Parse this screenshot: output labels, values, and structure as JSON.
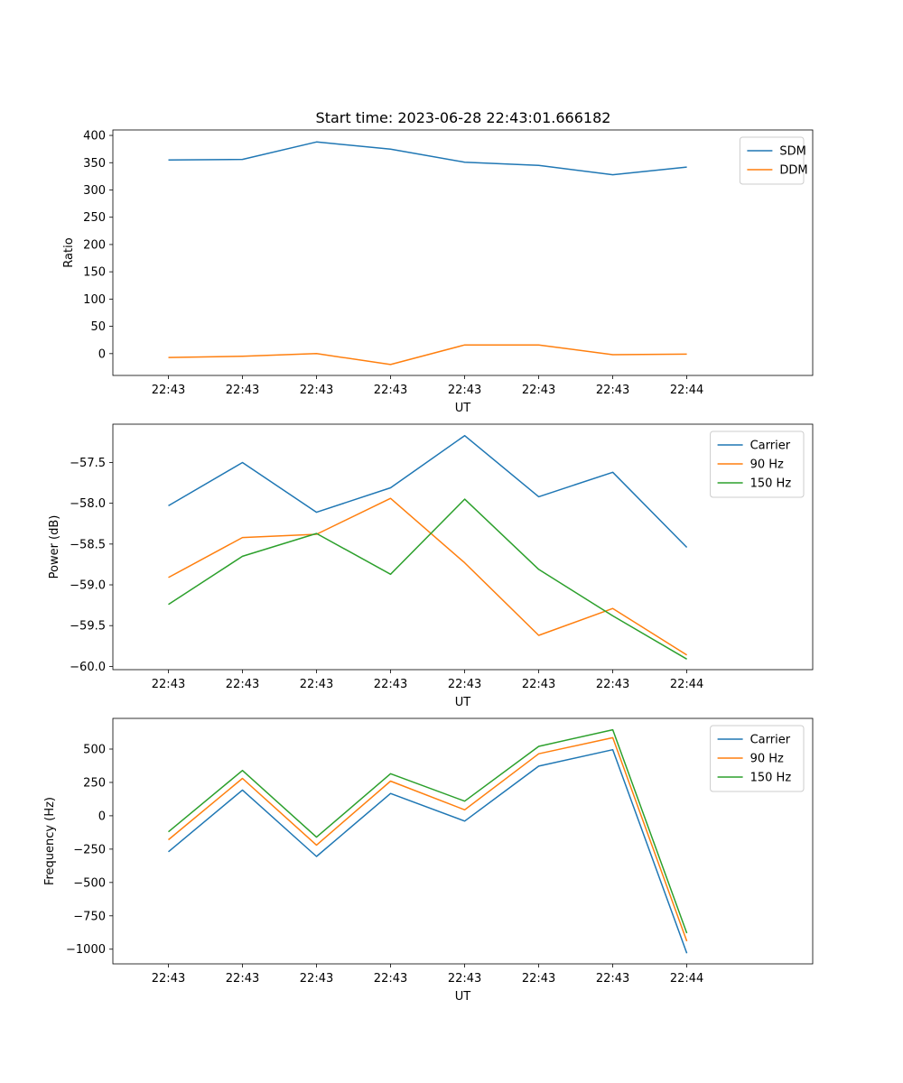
{
  "title": "Start time: 2023-06-28 22:43:01.666182",
  "chart_data": [
    {
      "type": "line",
      "xlabel": "UT",
      "ylabel": "Ratio",
      "x_tick_labels": [
        "22:43",
        "22:43",
        "22:43",
        "22:43",
        "22:43",
        "22:43",
        "22:43",
        "22:44"
      ],
      "xlim": [
        -0.75,
        8.7
      ],
      "ylim": [
        -40,
        410
      ],
      "yticks": [
        0,
        50,
        100,
        150,
        200,
        250,
        300,
        350,
        400
      ],
      "legend": "top-right",
      "series": [
        {
          "name": "SDM",
          "color": "#1f77b4",
          "values": [
            355,
            356,
            388,
            375,
            351,
            345,
            328,
            342
          ]
        },
        {
          "name": "DDM",
          "color": "#ff7f0e",
          "values": [
            -7,
            -5,
            0,
            -20,
            16,
            16,
            -2,
            -1
          ]
        }
      ]
    },
    {
      "type": "line",
      "xlabel": "UT",
      "ylabel": "Power (dB)",
      "x_tick_labels": [
        "22:43",
        "22:43",
        "22:43",
        "22:43",
        "22:43",
        "22:43",
        "22:43",
        "22:44"
      ],
      "xlim": [
        -0.75,
        8.7
      ],
      "ylim": [
        -60.04,
        -57.03
      ],
      "yticks": [
        -60.0,
        -59.5,
        -59.0,
        -58.5,
        -58.0,
        -57.5
      ],
      "legend": "top-right",
      "series": [
        {
          "name": "Carrier",
          "color": "#1f77b4",
          "values": [
            -58.03,
            -57.5,
            -58.11,
            -57.81,
            -57.17,
            -57.92,
            -57.62,
            -58.54
          ]
        },
        {
          "name": "90 Hz",
          "color": "#ff7f0e",
          "values": [
            -58.91,
            -58.42,
            -58.38,
            -57.94,
            -58.73,
            -59.62,
            -59.29,
            -59.86
          ]
        },
        {
          "name": "150 Hz",
          "color": "#2ca02c",
          "values": [
            -59.24,
            -58.65,
            -58.37,
            -58.87,
            -57.95,
            -58.81,
            -59.38,
            -59.91
          ]
        }
      ]
    },
    {
      "type": "line",
      "xlabel": "UT",
      "ylabel": "Frequency (Hz)",
      "x_tick_labels": [
        "22:43",
        "22:43",
        "22:43",
        "22:43",
        "22:43",
        "22:43",
        "22:43",
        "22:44"
      ],
      "xlim": [
        -0.75,
        8.7
      ],
      "ylim": [
        -1110,
        730
      ],
      "yticks": [
        -1000,
        -750,
        -500,
        -250,
        0,
        250,
        500
      ],
      "legend": "top-right",
      "series": [
        {
          "name": "Carrier",
          "color": "#1f77b4",
          "values": [
            -270,
            193,
            -305,
            167,
            -40,
            372,
            495,
            -1030
          ]
        },
        {
          "name": "90 Hz",
          "color": "#ff7f0e",
          "values": [
            -180,
            280,
            -220,
            260,
            45,
            465,
            585,
            -940
          ]
        },
        {
          "name": "150 Hz",
          "color": "#2ca02c",
          "values": [
            -120,
            340,
            -160,
            315,
            110,
            520,
            645,
            -880
          ]
        }
      ]
    }
  ]
}
